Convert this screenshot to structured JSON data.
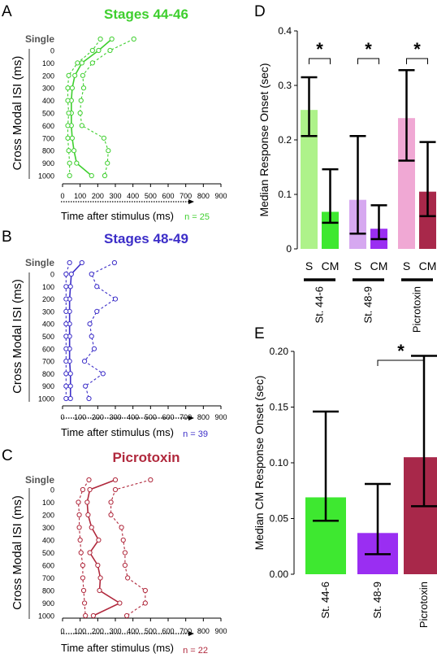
{
  "chart_data": [
    {
      "panel": "A",
      "type": "line",
      "title": "Stages 44-46",
      "color": "#3ecf2e",
      "xlabel": "Time after stimulus (ms)",
      "ylabel": "Cross Modal ISI (ms)",
      "n_label": "n = 25",
      "single_label": "Single",
      "categories": [
        "0",
        "100",
        "200",
        "300",
        "400",
        "500",
        "600",
        "700",
        "800",
        "900",
        "1000"
      ],
      "xlim": [
        0,
        900
      ],
      "xticks": [
        0,
        100,
        200,
        300,
        400,
        500,
        600,
        700,
        800,
        900
      ],
      "series": [
        {
          "style": "solid",
          "single": 280,
          "values": [
            205,
            110,
            70,
            55,
            50,
            50,
            50,
            55,
            65,
            80,
            165
          ]
        },
        {
          "style": "dashed",
          "single": 215,
          "values": [
            170,
            85,
            35,
            30,
            30,
            35,
            30,
            30,
            35,
            40,
            40
          ]
        },
        {
          "style": "dashed",
          "single": 405,
          "values": [
            270,
            170,
            115,
            120,
            105,
            100,
            110,
            235,
            260,
            255,
            240
          ]
        }
      ]
    },
    {
      "panel": "B",
      "type": "line",
      "title": "Stages 48-49",
      "color": "#3c2ec8",
      "xlabel": "Time after stimulus (ms)",
      "ylabel": "Cross Modal ISI (ms)",
      "n_label": "n = 39",
      "single_label": "Single",
      "categories": [
        "0",
        "100",
        "200",
        "300",
        "400",
        "500",
        "600",
        "700",
        "800",
        "900",
        "1000"
      ],
      "xlim": [
        0,
        900
      ],
      "xticks": [
        0,
        100,
        200,
        300,
        400,
        500,
        600,
        700,
        800,
        900
      ],
      "series": [
        {
          "style": "solid",
          "single": 110,
          "values": [
            50,
            45,
            40,
            40,
            40,
            40,
            40,
            40,
            45,
            45,
            45
          ]
        },
        {
          "style": "dashed",
          "single": 40,
          "values": [
            20,
            20,
            20,
            20,
            20,
            20,
            20,
            20,
            20,
            20,
            20
          ]
        },
        {
          "style": "dashed",
          "single": 295,
          "values": [
            165,
            195,
            300,
            195,
            155,
            165,
            180,
            125,
            230,
            130,
            150
          ]
        }
      ]
    },
    {
      "panel": "C",
      "type": "line",
      "title": "Picrotoxin",
      "color": "#b0283c",
      "xlabel": "Time after stimulus (ms)",
      "ylabel": "Cross Modal ISI (ms)",
      "n_label": "n = 22",
      "single_label": "Single",
      "categories": [
        "0",
        "100",
        "200",
        "300",
        "400",
        "500",
        "600",
        "700",
        "800",
        "900",
        "1000"
      ],
      "xlim": [
        0,
        900
      ],
      "xticks": [
        0,
        100,
        200,
        300,
        400,
        500,
        600,
        700,
        800,
        900
      ],
      "series": [
        {
          "style": "solid",
          "single": 300,
          "values": [
            155,
            140,
            145,
            165,
            205,
            155,
            200,
            215,
            210,
            325,
            175
          ]
        },
        {
          "style": "dashed",
          "single": 500,
          "values": [
            300,
            275,
            275,
            335,
            345,
            355,
            355,
            370,
            470,
            470,
            365
          ]
        },
        {
          "style": "dashed",
          "single": 150,
          "values": [
            115,
            90,
            95,
            95,
            100,
            105,
            115,
            115,
            120,
            125,
            130
          ]
        }
      ]
    },
    {
      "panel": "D",
      "type": "bar",
      "ylabel": "Median Response Onset (sec)",
      "ylim": [
        0,
        0.4
      ],
      "yticks": [
        "0",
        "0.1",
        "0.2",
        "0.3",
        "0.4"
      ],
      "bar_labels": [
        "S",
        "CM",
        "S",
        "CM",
        "S",
        "CM"
      ],
      "group_labels": [
        "St. 44-6",
        "St. 48-9",
        "Picrotoxin"
      ],
      "bars": [
        {
          "label": "S",
          "value": 0.255,
          "err_low": 0.207,
          "err_high": 0.315,
          "color": "#aef28a"
        },
        {
          "label": "CM",
          "value": 0.068,
          "err_low": 0.048,
          "err_high": 0.146,
          "color": "#3ee830"
        },
        {
          "label": "S",
          "value": 0.09,
          "err_low": 0.028,
          "err_high": 0.207,
          "color": "#d6a8f0"
        },
        {
          "label": "CM",
          "value": 0.037,
          "err_low": 0.018,
          "err_high": 0.08,
          "color": "#9a2ef2"
        },
        {
          "label": "S",
          "value": 0.24,
          "err_low": 0.162,
          "err_high": 0.328,
          "color": "#f0a8d4"
        },
        {
          "label": "CM",
          "value": 0.105,
          "err_low": 0.06,
          "err_high": 0.196,
          "color": "#a8284a"
        }
      ],
      "significance": [
        "*",
        "*",
        "*"
      ]
    },
    {
      "panel": "E",
      "type": "bar",
      "ylabel": "Median CM Response Onset (sec)",
      "ylim": [
        0,
        0.2
      ],
      "yticks": [
        "0.00",
        "0.05",
        "0.10",
        "0.15",
        "0.20"
      ],
      "categories": [
        "St. 44-6",
        "St. 48-9",
        "Picrotoxin"
      ],
      "bars": [
        {
          "label": "St. 44-6",
          "value": 0.069,
          "err_low": 0.048,
          "err_high": 0.146,
          "color": "#3ee830"
        },
        {
          "label": "St. 48-9",
          "value": 0.037,
          "err_low": 0.018,
          "err_high": 0.081,
          "color": "#9a2ef2"
        },
        {
          "label": "Picrotoxin",
          "value": 0.105,
          "err_low": 0.061,
          "err_high": 0.196,
          "color": "#a8284a"
        }
      ],
      "significance": [
        "*"
      ]
    }
  ]
}
